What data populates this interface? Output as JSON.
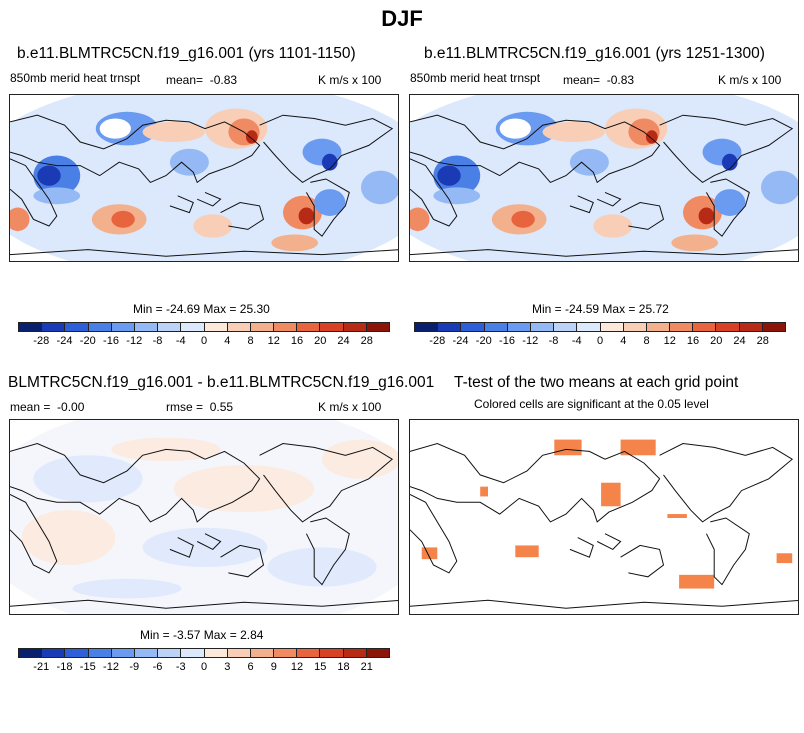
{
  "figure_title": "DJF",
  "chart_data": [
    {
      "type": "heatmap",
      "title": "b.e11.BLMTRC5CN.f19_g16.001 (yrs 1101-1150)",
      "left_label": "850mb merid heat trnspt",
      "mean_label": "mean=",
      "mean": "-0.83",
      "units": "K m/s x 100",
      "min_label": "Min =",
      "min": "-24.69",
      "max_label": "Max =",
      "max": "25.30",
      "colorbar_ticks": [
        "-28",
        "-24",
        "-20",
        "-16",
        "-12",
        "-8",
        "-4",
        "0",
        "4",
        "8",
        "12",
        "16",
        "20",
        "24",
        "28"
      ]
    },
    {
      "type": "heatmap",
      "title": "b.e11.BLMTRC5CN.f19_g16.001 (yrs 1251-1300)",
      "left_label": "850mb merid heat trnspt",
      "mean_label": "mean=",
      "mean": "-0.83",
      "units": "K m/s x 100",
      "min_label": "Min =",
      "min": "-24.59",
      "max_label": "Max =",
      "max": "25.72",
      "colorbar_ticks": [
        "-28",
        "-24",
        "-20",
        "-16",
        "-12",
        "-8",
        "-4",
        "0",
        "4",
        "8",
        "12",
        "16",
        "20",
        "24",
        "28"
      ]
    },
    {
      "type": "heatmap",
      "title": "BLMTRC5CN.f19_g16.001 - b.e11.BLMTRC5CN.f19_g16.001",
      "mean_label": "mean =",
      "mean": "-0.00",
      "rmse_label": "rmse =",
      "rmse": "0.55",
      "units": "K m/s x 100",
      "min_label": "Min =",
      "min": "-3.57",
      "max_label": "Max =",
      "max": "2.84",
      "colorbar_ticks": [
        "-21",
        "-18",
        "-15",
        "-12",
        "-9",
        "-6",
        "-3",
        "0",
        "3",
        "6",
        "9",
        "12",
        "15",
        "18",
        "21"
      ]
    },
    {
      "type": "heatmap",
      "title": "T-test of the two means at each grid point",
      "subtitle": "Colored cells are significant at the 0.05 level",
      "significant_color": "#f4844a"
    }
  ],
  "colors": {
    "colorbar_levels": [
      "#08206e",
      "#1a3bb5",
      "#2f5fd8",
      "#4a7fe6",
      "#6b9bf0",
      "#95b9f5",
      "#bcd3f8",
      "#dce8fb",
      "#fce9dc",
      "#f8cfb6",
      "#f3b08d",
      "#f08a62",
      "#e8643f",
      "#d84224",
      "#b72a16",
      "#8a1508"
    ],
    "ocean_base": "#dce8fb",
    "coast": "#111111"
  }
}
